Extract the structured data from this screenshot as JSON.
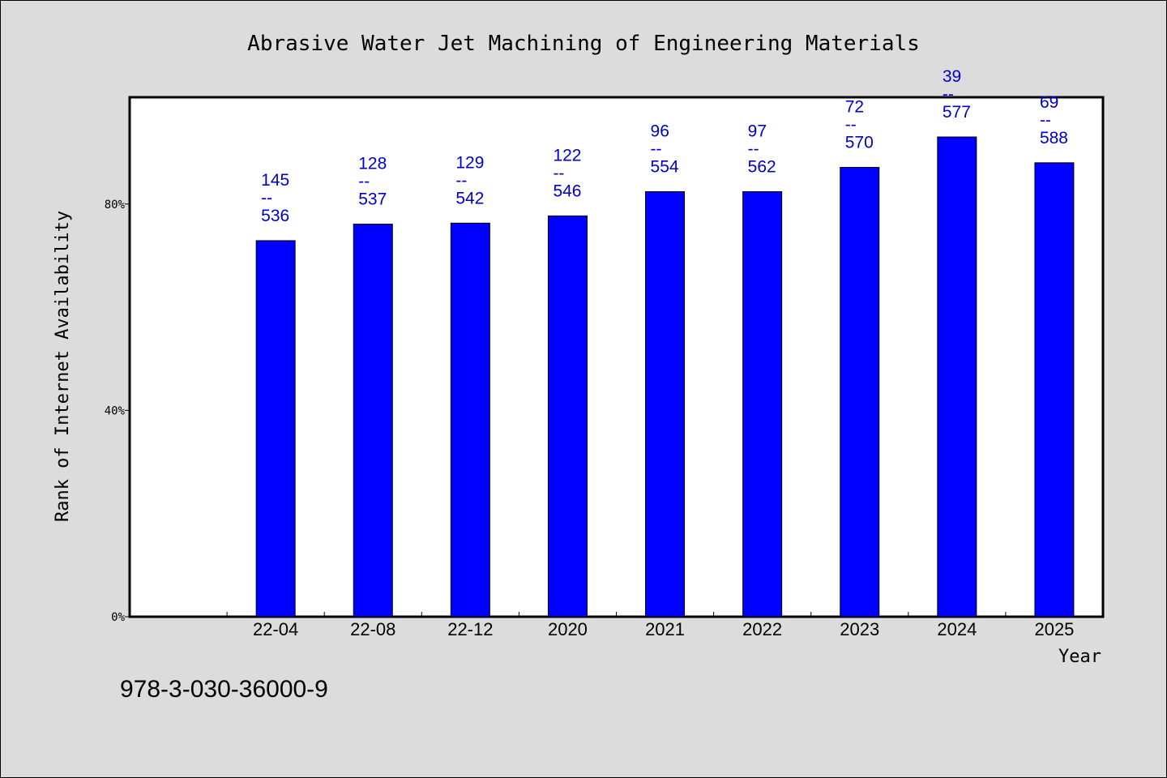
{
  "chart_data": {
    "type": "bar",
    "title": "Abrasive Water Jet Machining of Engineering Materials",
    "xlabel": "Year",
    "ylabel": "Rank of Internet Availability",
    "categories": [
      "",
      "22-04",
      "22-08",
      "22-12",
      "2020",
      "2021",
      "2022",
      "2023",
      "2024",
      "2025"
    ],
    "values": [
      null,
      72.9,
      76.1,
      76.3,
      77.7,
      82.4,
      82.4,
      87.1,
      93.0,
      88.0
    ],
    "top_labels": [
      "",
      "145",
      "128",
      "129",
      "122",
      "96",
      "97",
      "72",
      "39",
      "69"
    ],
    "bottom_labels": [
      "",
      "536",
      "537",
      "542",
      "546",
      "554",
      "562",
      "570",
      "577",
      "588"
    ],
    "label_separator": "--",
    "yticks": [
      "0%",
      "40%",
      "80%"
    ],
    "ytick_values": [
      0,
      40,
      80
    ],
    "ylim": [
      0,
      100.7
    ],
    "bar_color": "#0000ff",
    "label_color": "#0000cc",
    "grid": false,
    "legend": "none"
  },
  "footer_text": "978-3-030-36000-9"
}
